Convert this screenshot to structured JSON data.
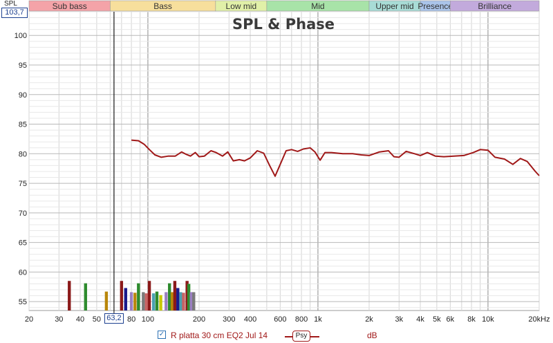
{
  "chart_data": {
    "type": "line",
    "title": "SPL & Phase",
    "ylabel": "SPL",
    "xscale": "log",
    "xlim": [
      20,
      20000
    ],
    "ylim": [
      53.5,
      104
    ],
    "yticks": [
      55,
      60,
      65,
      70,
      75,
      80,
      85,
      90,
      95,
      100
    ],
    "xticks": [
      {
        "v": 20,
        "label": "20"
      },
      {
        "v": 30,
        "label": "30"
      },
      {
        "v": 40,
        "label": "40"
      },
      {
        "v": 50,
        "label": "50"
      },
      {
        "v": 80,
        "label": "80"
      },
      {
        "v": 100,
        "label": "100"
      },
      {
        "v": 200,
        "label": "200"
      },
      {
        "v": 300,
        "label": "300"
      },
      {
        "v": 400,
        "label": "400"
      },
      {
        "v": 600,
        "label": "600"
      },
      {
        "v": 800,
        "label": "800"
      },
      {
        "v": 1000,
        "label": "1k"
      },
      {
        "v": 2000,
        "label": "2k"
      },
      {
        "v": 3000,
        "label": "3k"
      },
      {
        "v": 4000,
        "label": "4k"
      },
      {
        "v": 5000,
        "label": "5k"
      },
      {
        "v": 6000,
        "label": "6k"
      },
      {
        "v": 8000,
        "label": "8k"
      },
      {
        "v": 10000,
        "label": "10k"
      },
      {
        "v": 20000,
        "label": "20kHz"
      }
    ],
    "bands": [
      {
        "label": "Sub bass",
        "from": 20,
        "to": 60,
        "color": "#f4a3a8"
      },
      {
        "label": "Bass",
        "from": 60,
        "to": 250,
        "color": "#f7df9c"
      },
      {
        "label": "Low mid",
        "from": 250,
        "to": 500,
        "color": "#e1f0a8"
      },
      {
        "label": "Mid",
        "from": 500,
        "to": 2000,
        "color": "#a8e3a8"
      },
      {
        "label": "Upper mid",
        "from": 2000,
        "to": 4000,
        "color": "#a8dcd6"
      },
      {
        "label": "Presence",
        "from": 4000,
        "to": 6000,
        "color": "#aac4ea"
      },
      {
        "label": "Brilliance",
        "from": 6000,
        "to": 20000,
        "color": "#c2aadc"
      }
    ],
    "cursor": {
      "freq": 63.2,
      "freq_label": "63,2",
      "spl_label": "103,7"
    },
    "series": [
      {
        "name": "R platta 30 cm EQ2 Jul 14",
        "color": "#a01818",
        "points": [
          [
            80,
            82.3
          ],
          [
            88,
            82.2
          ],
          [
            95,
            81.6
          ],
          [
            102,
            80.7
          ],
          [
            110,
            79.8
          ],
          [
            120,
            79.4
          ],
          [
            132,
            79.6
          ],
          [
            145,
            79.6
          ],
          [
            158,
            80.3
          ],
          [
            168,
            79.9
          ],
          [
            178,
            79.6
          ],
          [
            190,
            80.2
          ],
          [
            200,
            79.5
          ],
          [
            215,
            79.6
          ],
          [
            235,
            80.5
          ],
          [
            252,
            80.2
          ],
          [
            275,
            79.6
          ],
          [
            295,
            80.3
          ],
          [
            318,
            78.8
          ],
          [
            345,
            79.0
          ],
          [
            370,
            78.8
          ],
          [
            400,
            79.3
          ],
          [
            440,
            80.5
          ],
          [
            480,
            80.1
          ],
          [
            520,
            78.0
          ],
          [
            560,
            76.2
          ],
          [
            600,
            78.2
          ],
          [
            650,
            80.5
          ],
          [
            700,
            80.7
          ],
          [
            760,
            80.4
          ],
          [
            820,
            80.8
          ],
          [
            900,
            81.0
          ],
          [
            960,
            80.3
          ],
          [
            1030,
            78.9
          ],
          [
            1100,
            80.2
          ],
          [
            1200,
            80.2
          ],
          [
            1400,
            80.0
          ],
          [
            1600,
            80.0
          ],
          [
            1800,
            79.8
          ],
          [
            2000,
            79.7
          ],
          [
            2300,
            80.3
          ],
          [
            2600,
            80.5
          ],
          [
            2800,
            79.5
          ],
          [
            3000,
            79.4
          ],
          [
            3300,
            80.4
          ],
          [
            3700,
            80.0
          ],
          [
            4000,
            79.7
          ],
          [
            4400,
            80.2
          ],
          [
            4900,
            79.6
          ],
          [
            5500,
            79.5
          ],
          [
            6300,
            79.6
          ],
          [
            7200,
            79.7
          ],
          [
            8200,
            80.2
          ],
          [
            9000,
            80.7
          ],
          [
            10000,
            80.6
          ],
          [
            11000,
            79.4
          ],
          [
            12500,
            79.1
          ],
          [
            14000,
            78.2
          ],
          [
            15500,
            79.2
          ],
          [
            17000,
            78.7
          ],
          [
            19000,
            77.0
          ],
          [
            20000,
            76.3
          ]
        ]
      }
    ],
    "bars": [
      {
        "f": 34.5,
        "v": 58.5,
        "color": "#8b1a1a"
      },
      {
        "f": 43,
        "v": 58.1,
        "color": "#2e8b2e"
      },
      {
        "f": 57,
        "v": 56.7,
        "color": "#b8860b"
      },
      {
        "f": 70,
        "v": 58.5,
        "color": "#8b1a1a"
      },
      {
        "f": 74,
        "v": 57.3,
        "color": "#1a1a8b"
      },
      {
        "f": 80,
        "v": 56.6,
        "color": "#9b7fc2"
      },
      {
        "f": 84,
        "v": 56.5,
        "color": "#b8860b"
      },
      {
        "f": 88,
        "v": 58.1,
        "color": "#2e8b2e"
      },
      {
        "f": 94,
        "v": 56.6,
        "color": "#7a7a7a"
      },
      {
        "f": 98,
        "v": 56.4,
        "color": "#c86464"
      },
      {
        "f": 102,
        "v": 58.5,
        "color": "#8b1a1a"
      },
      {
        "f": 108,
        "v": 56.4,
        "color": "#4aa0b0"
      },
      {
        "f": 113,
        "v": 56.7,
        "color": "#2e8b2e"
      },
      {
        "f": 119,
        "v": 56.1,
        "color": "#c8c800"
      },
      {
        "f": 128,
        "v": 56.6,
        "color": "#9b7fc2"
      },
      {
        "f": 134,
        "v": 58.1,
        "color": "#2e8b2e"
      },
      {
        "f": 139,
        "v": 56.6,
        "color": "#b8860b"
      },
      {
        "f": 144,
        "v": 58.5,
        "color": "#8b1a1a"
      },
      {
        "f": 150,
        "v": 57.3,
        "color": "#1a1a8b"
      },
      {
        "f": 156,
        "v": 56.6,
        "color": "#4aa0b0"
      },
      {
        "f": 162,
        "v": 56.5,
        "color": "#c86464"
      },
      {
        "f": 170,
        "v": 58.5,
        "color": "#8b1a1a"
      },
      {
        "f": 174,
        "v": 58.0,
        "color": "#2e8b2e"
      },
      {
        "f": 180,
        "v": 56.6,
        "color": "#9b7fc2"
      },
      {
        "f": 186,
        "v": 56.6,
        "color": "#7a7a7a"
      }
    ]
  },
  "legend": {
    "checked": true,
    "series_name": "R platta 30 cm EQ2 Jul 14",
    "badge": "Psy",
    "unit": "dB"
  }
}
